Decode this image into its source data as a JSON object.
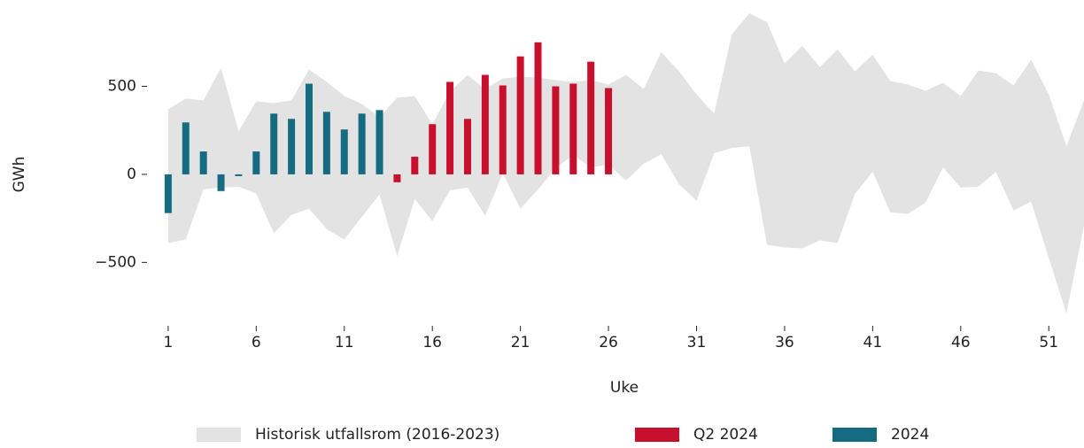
{
  "chart_data": {
    "type": "bar",
    "xlabel": "Uke",
    "ylabel": "GWh",
    "xlim": [
      0,
      53
    ],
    "xticks": [
      1,
      6,
      11,
      16,
      21,
      26,
      31,
      36,
      41,
      46,
      51
    ],
    "ylim": [
      -820,
      940
    ],
    "yticks": [
      {
        "value": -500,
        "label": "−500"
      },
      0,
      500
    ],
    "grid": false,
    "legend": "bottom",
    "series": [
      {
        "name": "Historisk utfallsrom (2016-2023)",
        "type": "area",
        "color": "#e3e3e3",
        "x": [
          1,
          2,
          3,
          4,
          5,
          6,
          7,
          8,
          9,
          10,
          11,
          12,
          13,
          14,
          15,
          16,
          17,
          18,
          19,
          20,
          21,
          22,
          23,
          24,
          25,
          26,
          27,
          28,
          29,
          30,
          31,
          32,
          33,
          34,
          35,
          36,
          37,
          38,
          39,
          40,
          41,
          42,
          43,
          44,
          45,
          46,
          47,
          48,
          49,
          50,
          51,
          52,
          53
        ],
        "upper": [
          370,
          430,
          420,
          605,
          245,
          415,
          405,
          420,
          595,
          525,
          445,
          400,
          325,
          435,
          445,
          285,
          470,
          565,
          485,
          545,
          555,
          550,
          535,
          525,
          535,
          510,
          565,
          485,
          695,
          585,
          455,
          345,
          795,
          915,
          865,
          630,
          730,
          610,
          710,
          585,
          680,
          530,
          510,
          475,
          520,
          445,
          590,
          575,
          505,
          650,
          455,
          160,
          420
        ],
        "lower": [
          -390,
          -370,
          -85,
          -75,
          -70,
          -110,
          -335,
          -230,
          -195,
          -310,
          -370,
          -240,
          -115,
          -465,
          -140,
          -265,
          -90,
          -75,
          -235,
          5,
          -195,
          -85,
          35,
          110,
          40,
          55,
          -35,
          60,
          115,
          -55,
          -150,
          120,
          150,
          160,
          -400,
          -415,
          -420,
          -375,
          -390,
          -110,
          15,
          -215,
          -225,
          -160,
          40,
          -75,
          -70,
          15,
          -205,
          -155,
          -475,
          -790,
          -290
        ]
      },
      {
        "name": "Q2 2024",
        "type": "bar",
        "color": "#c8102e",
        "x": [
          14,
          15,
          16,
          17,
          18,
          19,
          20,
          21,
          22,
          23,
          24,
          25,
          26
        ],
        "values": [
          -45,
          100,
          285,
          525,
          315,
          565,
          505,
          670,
          750,
          500,
          515,
          640,
          490
        ]
      },
      {
        "name": "2024",
        "type": "bar",
        "color": "#156c80",
        "x": [
          1,
          2,
          3,
          4,
          5,
          6,
          7,
          8,
          9,
          10,
          11,
          12,
          13
        ],
        "values": [
          -220,
          295,
          130,
          -95,
          -10,
          130,
          345,
          315,
          515,
          355,
          255,
          345,
          365
        ]
      }
    ]
  }
}
